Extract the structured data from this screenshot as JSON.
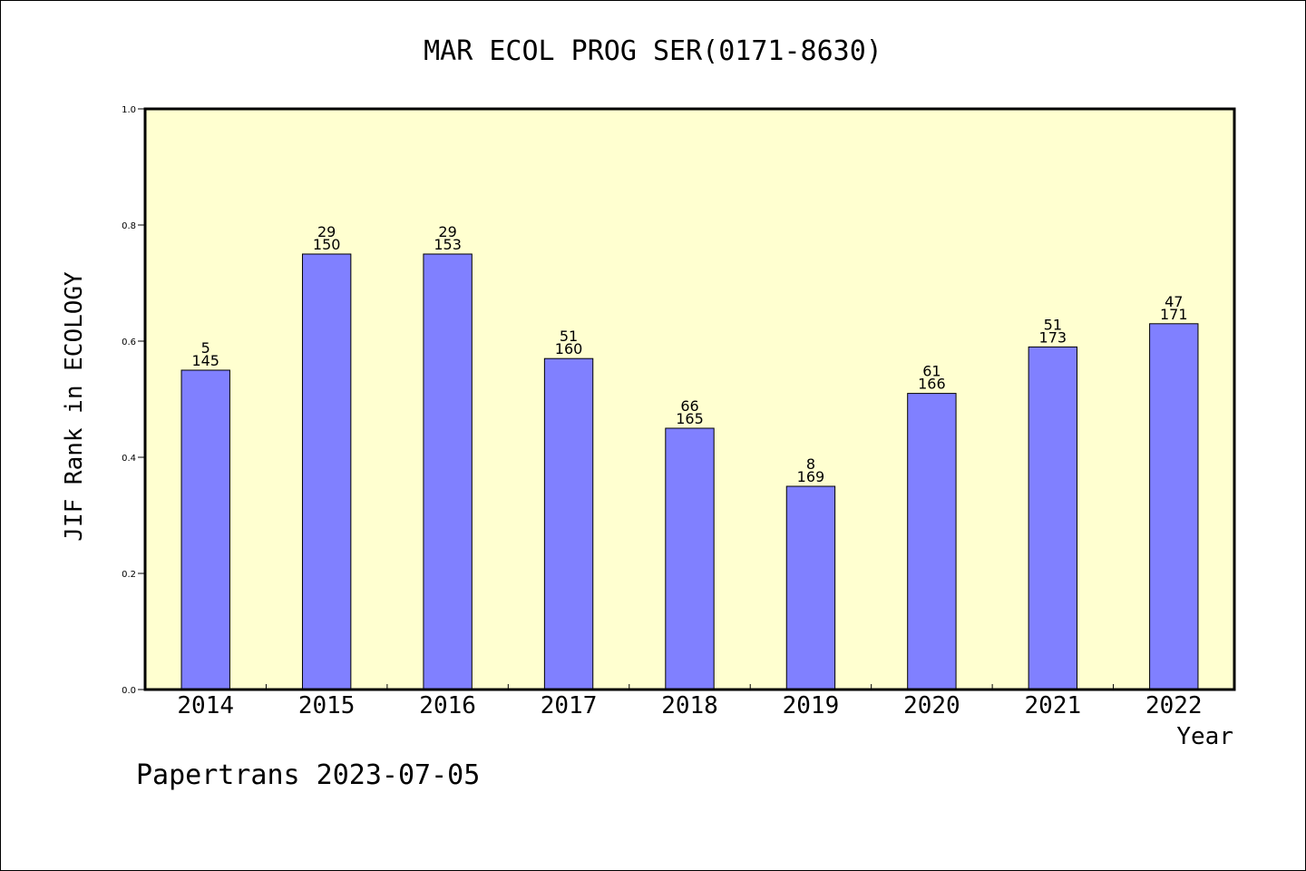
{
  "chart_data": {
    "type": "bar",
    "title": "MAR ECOL PROG SER(0171-8630)",
    "xlabel": "Year",
    "ylabel": "JIF Rank in ECOLOGY",
    "ylim": [
      0,
      1.0
    ],
    "yticks": [
      "0.0",
      "0.2",
      "0.4",
      "0.6",
      "0.8",
      "1.0"
    ],
    "categories": [
      "2014",
      "2015",
      "2016",
      "2017",
      "2018",
      "2019",
      "2020",
      "2021",
      "2022"
    ],
    "values": [
      0.55,
      0.75,
      0.75,
      0.57,
      0.45,
      0.35,
      0.51,
      0.59,
      0.63
    ],
    "label_top": [
      "5",
      "29",
      "29",
      "51",
      "66",
      "8",
      "61",
      "51",
      "47"
    ],
    "label_bottom": [
      "145",
      "150",
      "153",
      "160",
      "165",
      "169",
      "166",
      "173",
      "171"
    ],
    "grid": false,
    "colors": {
      "bar": "#8080ff",
      "plot_bg": "#ffffd0",
      "bar_stroke": "#000000"
    }
  },
  "footer": "Papertrans 2023-07-05"
}
